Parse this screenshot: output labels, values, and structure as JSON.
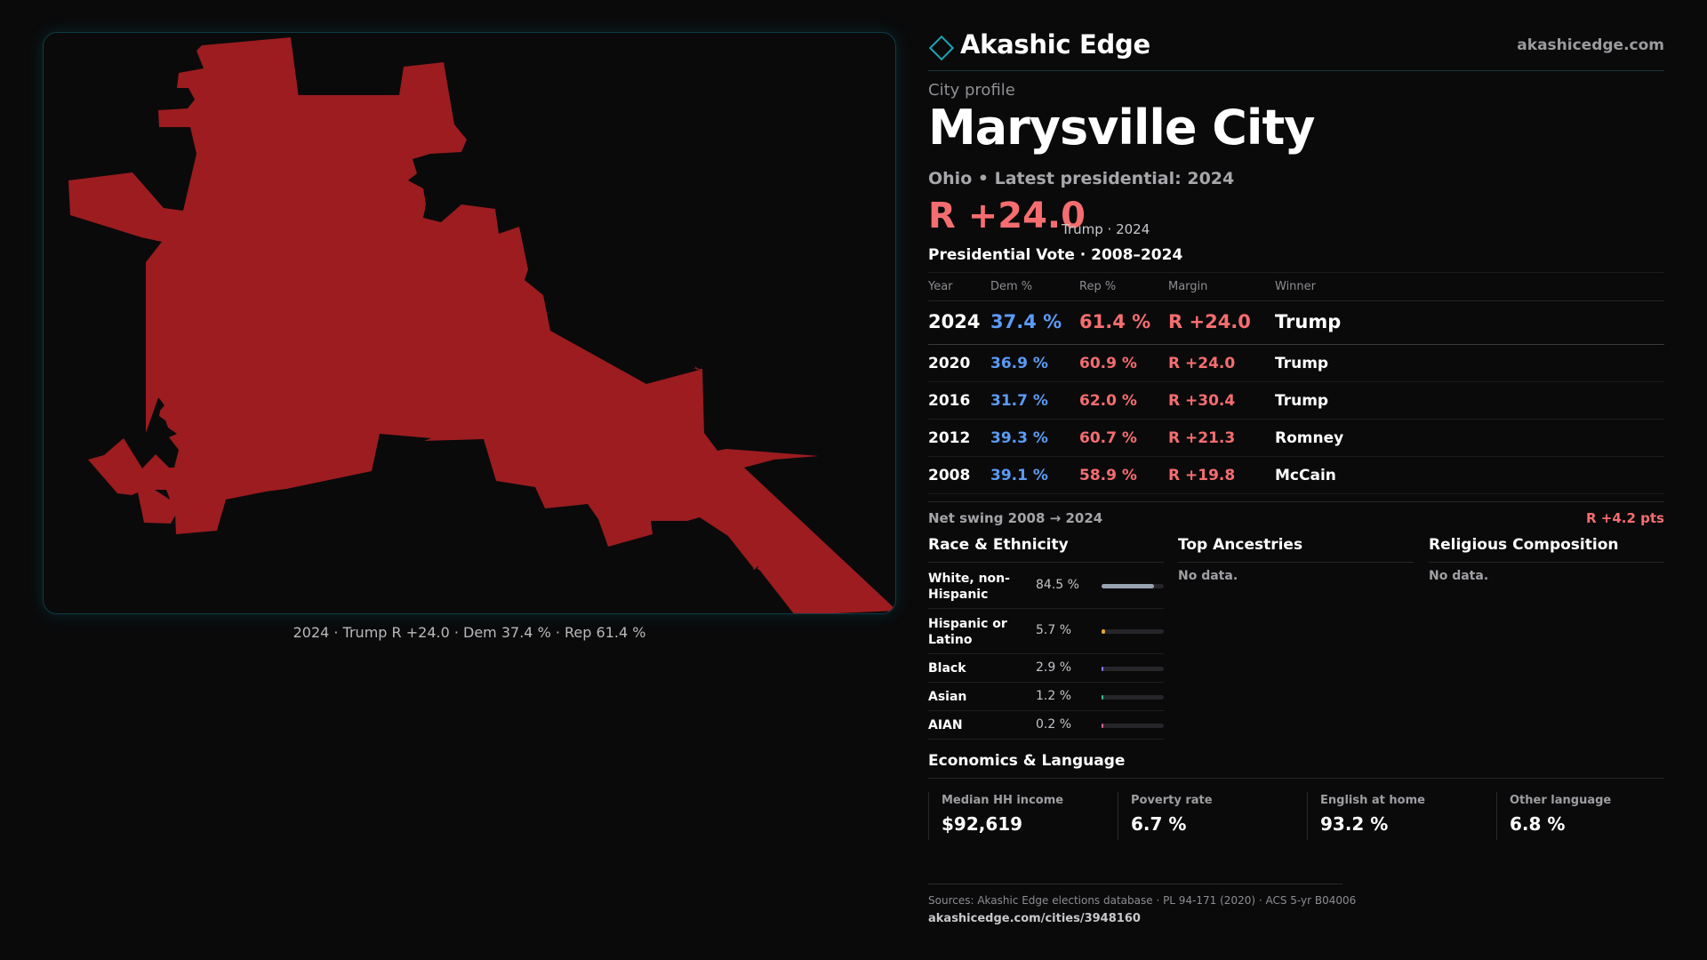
{
  "map": {
    "fill_color": "#9c1c1f",
    "border_color": "#0f3b44",
    "caption": "2024 · Trump R +24.0 · Dem 37.4 % · Rep 61.4 %"
  },
  "brand": {
    "name": "Akashic Edge",
    "url": "akashicedge.com",
    "logo_icon": "diamond-icon"
  },
  "profile": {
    "eyebrow": "City profile",
    "title": "Marysville City",
    "subtitle": "Ohio • Latest presidential: 2024",
    "margin": "R +24.0",
    "margin_note": "Trump · 2024"
  },
  "vote": {
    "heading": "Presidential Vote · 2008–2024",
    "columns": [
      "Year",
      "Dem %",
      "Rep %",
      "Margin",
      "Winner"
    ],
    "rows": [
      {
        "year": "2024",
        "dem": "37.4 %",
        "rep": "61.4 %",
        "margin": "R +24.0",
        "winner": "Trump"
      },
      {
        "year": "2020",
        "dem": "36.9 %",
        "rep": "60.9 %",
        "margin": "R +24.0",
        "winner": "Trump"
      },
      {
        "year": "2016",
        "dem": "31.7 %",
        "rep": "62.0 %",
        "margin": "R +30.4",
        "winner": "Trump"
      },
      {
        "year": "2012",
        "dem": "39.3 %",
        "rep": "60.7 %",
        "margin": "R +21.3",
        "winner": "Romney"
      },
      {
        "year": "2008",
        "dem": "39.1 %",
        "rep": "58.9 %",
        "margin": "R +19.8",
        "winner": "McCain"
      }
    ],
    "swing_label": "Net swing 2008 → 2024",
    "swing_value": "R +4.2 pts"
  },
  "race": {
    "title": "Race & Ethnicity",
    "rows": [
      {
        "label": "White, non-Hispanic",
        "pct": "84.5 %",
        "share": 0.845,
        "color": "#9aa3b3"
      },
      {
        "label": "Hispanic or Latino",
        "pct": "5.7 %",
        "share": 0.057,
        "color": "#e9a23b"
      },
      {
        "label": "Black",
        "pct": "2.9 %",
        "share": 0.029,
        "color": "#8b7cf6"
      },
      {
        "label": "Asian",
        "pct": "1.2 %",
        "share": 0.012,
        "color": "#3fbf8f"
      },
      {
        "label": "AIAN",
        "pct": "0.2 %",
        "share": 0.002,
        "color": "#d06a9a"
      }
    ]
  },
  "ancestry": {
    "title": "Top Ancestries",
    "empty": "No data."
  },
  "religion": {
    "title": "Religious Composition",
    "empty": "No data."
  },
  "economics": {
    "title": "Economics & Language",
    "cards": [
      {
        "label": "Median HH income",
        "value": "$92,619"
      },
      {
        "label": "Poverty rate",
        "value": "6.7 %"
      },
      {
        "label": "English at home",
        "value": "93.2 %"
      },
      {
        "label": "Other language",
        "value": "6.8 %"
      }
    ]
  },
  "footer": {
    "sources": "Sources: Akashic Edge elections database · PL 94-171 (2020) · ACS 5-yr B04006",
    "url": "akashicedge.com/cities/3948160"
  }
}
